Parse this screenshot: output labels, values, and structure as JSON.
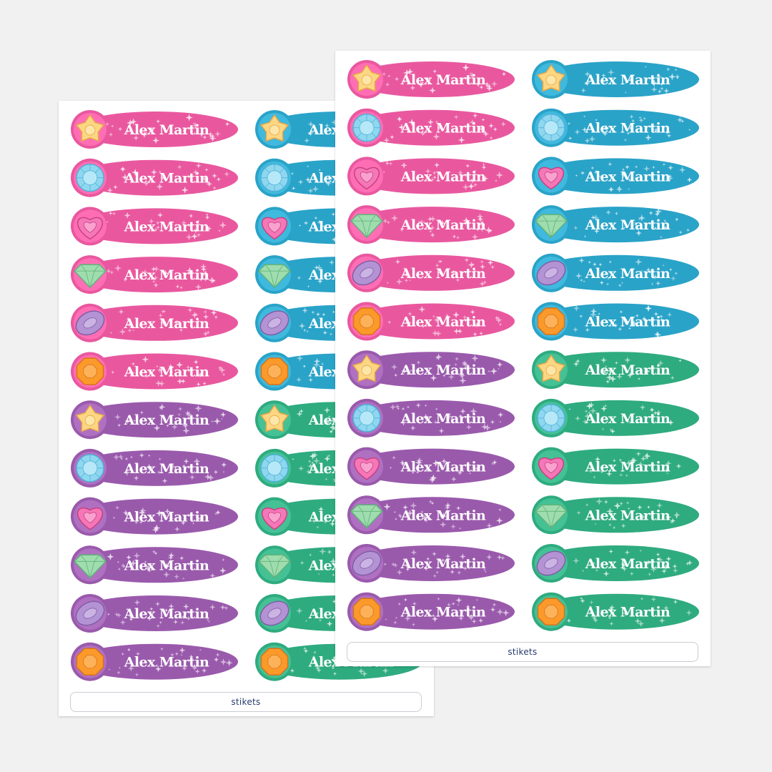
{
  "label_text": "Alex Martin",
  "brand": "stikets",
  "colors": {
    "pink": "#e9589f",
    "blue": "#2aa3c8",
    "purple": "#9a5aac",
    "green": "#2fab80"
  },
  "gems": [
    "star-gem",
    "round-gem",
    "heart-gem",
    "diamond-gem",
    "oval-gem",
    "octagon-gem"
  ],
  "sheets": [
    {
      "id": "back",
      "columns": [
        [
          "pink",
          "pink",
          "pink",
          "pink",
          "pink",
          "pink",
          "purple",
          "purple",
          "purple",
          "purple",
          "purple",
          "purple"
        ],
        [
          "blue",
          "blue",
          "blue",
          "blue",
          "blue",
          "blue",
          "green",
          "green",
          "green",
          "green",
          "green",
          "green"
        ]
      ]
    },
    {
      "id": "front",
      "columns": [
        [
          "pink",
          "pink",
          "pink",
          "pink",
          "pink",
          "pink",
          "purple",
          "purple",
          "purple",
          "purple",
          "purple",
          "purple"
        ],
        [
          "blue",
          "blue",
          "blue",
          "blue",
          "blue",
          "blue",
          "green",
          "green",
          "green",
          "green",
          "green",
          "green"
        ]
      ]
    }
  ]
}
